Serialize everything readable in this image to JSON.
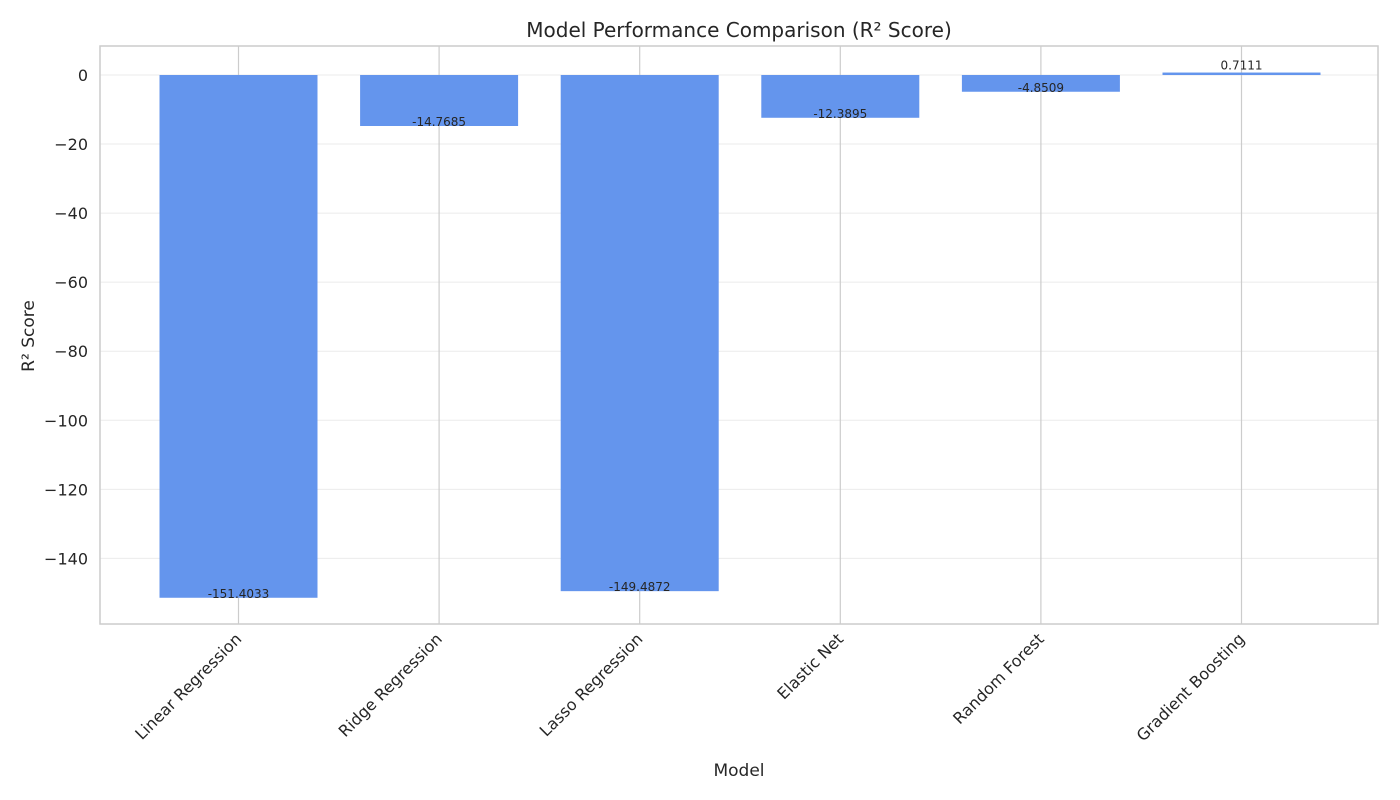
{
  "chart_data": {
    "type": "bar",
    "title": "Model Performance Comparison (R² Score)",
    "xlabel": "Model",
    "ylabel": "R² Score",
    "categories": [
      "Linear Regression",
      "Ridge Regression",
      "Lasso Regression",
      "Elastic Net",
      "Random Forest",
      "Gradient Boosting"
    ],
    "values": [
      -151.4033,
      -14.7685,
      -149.4872,
      -12.3895,
      -4.8509,
      0.7111
    ],
    "value_labels": [
      "-151.4033",
      "-14.7685",
      "-149.4872",
      "-12.3895",
      "-4.8509",
      "0.7111"
    ],
    "yticks": [
      0,
      -20,
      -40,
      -60,
      -80,
      -100,
      -120,
      -140
    ],
    "ytick_labels": [
      "0",
      "−20",
      "−40",
      "−60",
      "−80",
      "−100",
      "−120",
      "−140"
    ],
    "ylim": [
      -159.0,
      8.4
    ],
    "grid": true,
    "colors": {
      "bar": "#6495ED",
      "grid": "#EBEBEB",
      "vgrid": "#CCCCCC",
      "axes": "#CCCCCC",
      "text": "#262626"
    }
  }
}
